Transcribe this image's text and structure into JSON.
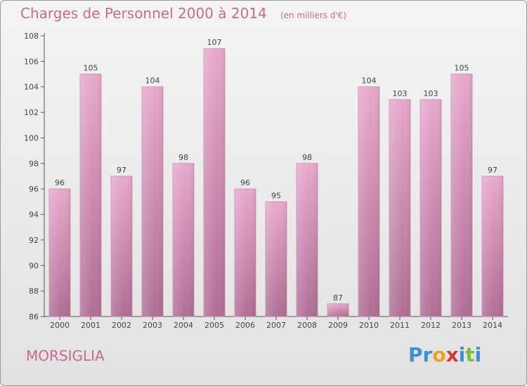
{
  "header": {
    "title": "Charges de Personnel 2000 à 2014",
    "subtitle": "(en milliers d'€)"
  },
  "commune": "MORSIGLIA",
  "logo": {
    "text": "Proxiti",
    "letters": [
      "P",
      "r",
      "o",
      "x",
      "i",
      "t",
      "i"
    ],
    "colors": [
      "#3d8fd6",
      "#3d8fd6",
      "#f0a020",
      "#d63a3a",
      "#3d8fd6",
      "#7bbf3a",
      "#3d8fd6"
    ]
  },
  "chart_data": {
    "type": "bar",
    "title": "Charges de Personnel 2000 à 2014",
    "subtitle": "(en milliers d'€)",
    "xlabel": "",
    "ylabel": "",
    "categories": [
      "2000",
      "2001",
      "2002",
      "2003",
      "2004",
      "2005",
      "2006",
      "2007",
      "2008",
      "2009",
      "2010",
      "2011",
      "2012",
      "2013",
      "2014"
    ],
    "values": [
      96,
      105,
      97,
      104,
      98,
      107,
      96,
      95,
      98,
      87,
      104,
      103,
      103,
      105,
      97
    ],
    "ylim": [
      86,
      108
    ],
    "yticks": [
      86,
      88,
      90,
      92,
      94,
      96,
      98,
      100,
      102,
      104,
      106,
      108
    ],
    "grid": false,
    "legend": "none",
    "bar_color_top": "#e8a8cc",
    "bar_color_bottom": "#b06e94",
    "label_color": "#444444",
    "title_color": "#c86a92"
  }
}
